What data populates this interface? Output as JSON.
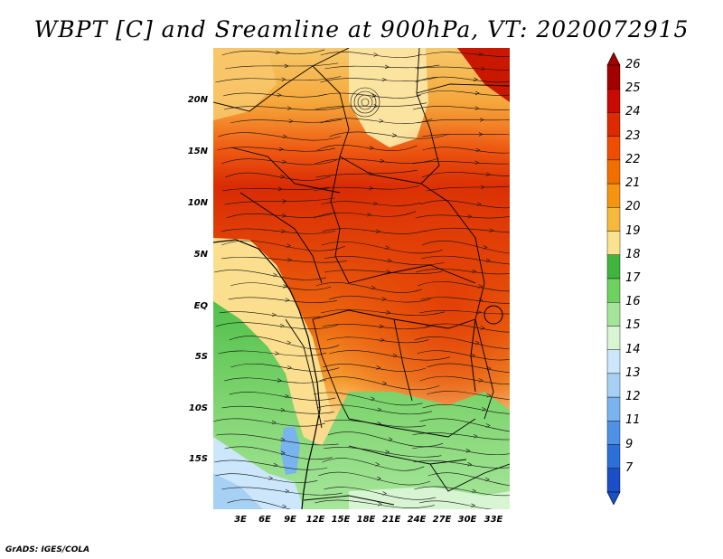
{
  "title": "WBPT [C] and Sreamline at 900hPa, VT: 2020072915",
  "footer": "GrADS: IGES/COLA",
  "map": {
    "description_fields": [
      "wet bulb potential temperature",
      "streamlines"
    ],
    "lat_labels": [
      "20N",
      "15N",
      "10N",
      "5N",
      "EQ",
      "5S",
      "10S",
      "15S"
    ],
    "lon_labels": [
      "3E",
      "6E",
      "9E",
      "12E",
      "15E",
      "18E",
      "21E",
      "24E",
      "27E",
      "30E",
      "33E"
    ]
  },
  "colorbar": {
    "labels": [
      "26",
      "25",
      "24",
      "23",
      "22",
      "21",
      "20",
      "19",
      "18",
      "17",
      "16",
      "15",
      "14",
      "13",
      "12",
      "11",
      "9",
      "7"
    ],
    "colors": [
      "#a50000",
      "#c80a00",
      "#de2a00",
      "#ef4d00",
      "#f26e00",
      "#f5940f",
      "#f7b93c",
      "#fbe28c",
      "#3fb53f",
      "#6fd160",
      "#a4e59a",
      "#d8f5d3",
      "#cce6fb",
      "#a7d0f5",
      "#7ab4ee",
      "#4f92e5",
      "#2c6fd9",
      "#1a4fc8"
    ]
  }
}
